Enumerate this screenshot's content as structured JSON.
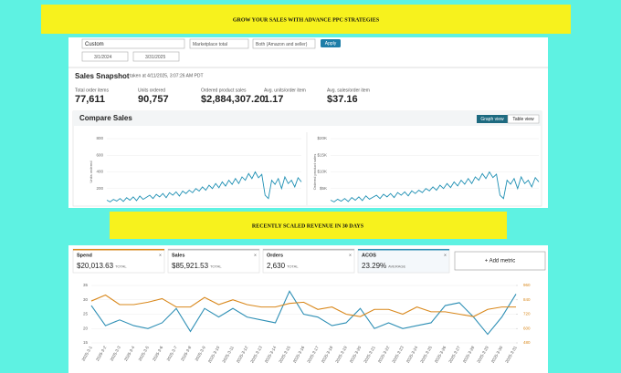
{
  "banner_top": "GROW YOUR SALES WITH ADVANCE PPC STRATEGIES",
  "filters": {
    "range": "Custom",
    "marketplace": "Marketplace total",
    "channel": "Both (Amazon and seller)",
    "apply": "Apply",
    "start_date": "3/1/2024",
    "end_date": "3/31/2025"
  },
  "snapshot": {
    "title": "Sales Snapshot",
    "taken": "taken at 4/11/2025, 3:07:26 AM PDT",
    "metrics": [
      {
        "label": "Total order items",
        "value": "77,611"
      },
      {
        "label": "Units ordered",
        "value": "90,757"
      },
      {
        "label": "Ordered product sales",
        "value": "$2,884,307.20"
      },
      {
        "label": "Avg. units/order item",
        "value": "1.17"
      },
      {
        "label": "Avg. sales/order item",
        "value": "$37.16"
      }
    ]
  },
  "compare": {
    "title": "Compare Sales",
    "graph_view": "Graph view",
    "table_view": "Table view"
  },
  "banner_middle": "RECENTLY SCALED REVENUE IN 30 DAYS",
  "ads_metrics": [
    {
      "label": "Spend",
      "value": "$20,013.63",
      "note": "TOTAL"
    },
    {
      "label": "Sales",
      "value": "$85,921.53",
      "note": "TOTAL"
    },
    {
      "label": "Orders",
      "value": "2,630",
      "note": "TOTAL"
    },
    {
      "label": "ACOS",
      "value": "23.29%",
      "note": "AVERAGE"
    }
  ],
  "add_metric": "+ Add metric",
  "chart_data": [
    {
      "type": "line",
      "y_label": "Units ordered",
      "ylim": [
        0,
        800
      ],
      "yticks": [
        200,
        400,
        600,
        800
      ],
      "series": [
        {
          "color": "#1e8fb3",
          "values": [
            60,
            40,
            70,
            50,
            80,
            45,
            90,
            60,
            100,
            55,
            110,
            70,
            95,
            120,
            80,
            130,
            100,
            140,
            90,
            150,
            120,
            160,
            110,
            170,
            140,
            180,
            150,
            200,
            170,
            220,
            180,
            240,
            200,
            260,
            210,
            280,
            230,
            300,
            250,
            320,
            260,
            340,
            300,
            380,
            320,
            400,
            330,
            370,
            120,
            80,
            300,
            250,
            320,
            200,
            340,
            260,
            300,
            220,
            330,
            280
          ]
        }
      ]
    },
    {
      "type": "line",
      "y_label": "Ordered product sales",
      "ylim": [
        0,
        20000
      ],
      "yticks": [
        {
          "value": 5000,
          "label": "$5K"
        },
        {
          "value": 10000,
          "label": "$10K"
        },
        {
          "value": 15000,
          "label": "$15K"
        },
        {
          "value": 20000,
          "label": "$20K"
        }
      ],
      "series": [
        {
          "color": "#1e8fb3",
          "values": [
            1500,
            1000,
            1800,
            1200,
            2000,
            1100,
            2300,
            1500,
            2500,
            1400,
            2800,
            1800,
            2400,
            3000,
            2000,
            3300,
            2500,
            3500,
            2300,
            3800,
            3000,
            4000,
            2800,
            4300,
            3500,
            4500,
            3800,
            5000,
            4300,
            5500,
            4500,
            6000,
            5000,
            6500,
            5300,
            7000,
            5800,
            7500,
            6300,
            8000,
            6500,
            8500,
            7500,
            9500,
            8000,
            10000,
            8300,
            9300,
            3000,
            2000,
            7500,
            6300,
            8000,
            5000,
            8500,
            6500,
            7500,
            5500,
            8300,
            7000
          ]
        }
      ]
    },
    {
      "type": "line",
      "x": [
        "2025-3-1",
        "2025-3-2",
        "2025-3-3",
        "2025-3-4",
        "2025-3-5",
        "2025-3-6",
        "2025-3-7",
        "2025-3-8",
        "2025-3-9",
        "2025-3-10",
        "2025-3-11",
        "2025-3-12",
        "2025-3-13",
        "2025-3-14",
        "2025-3-15",
        "2025-3-16",
        "2025-3-17",
        "2025-3-18",
        "2025-3-19",
        "2025-3-20",
        "2025-3-21",
        "2025-3-22",
        "2025-3-23",
        "2025-3-24",
        "2025-3-25",
        "2025-3-26",
        "2025-3-27",
        "2025-3-28",
        "2025-3-29",
        "2025-3-30",
        "2025-3-31"
      ],
      "ylim": [
        15,
        35
      ],
      "yticks": [
        15,
        20,
        25,
        30,
        35
      ],
      "y2lim": [
        480,
        960
      ],
      "y2ticks": [
        480,
        600,
        720,
        840,
        960
      ],
      "series": [
        {
          "color": "#2e8fb5",
          "values": [
            28,
            21,
            23,
            21,
            20,
            22,
            27,
            19,
            27,
            24,
            27,
            24,
            23,
            22,
            33,
            25,
            24,
            21,
            22,
            27,
            20,
            22,
            20,
            21,
            22,
            28,
            29,
            24,
            18,
            24,
            32
          ]
        },
        {
          "color": "#d9881c",
          "axis": "y2",
          "values": [
            830,
            880,
            800,
            800,
            820,
            850,
            780,
            780,
            860,
            800,
            840,
            800,
            780,
            780,
            810,
            820,
            760,
            780,
            720,
            700,
            760,
            760,
            720,
            780,
            740,
            740,
            720,
            700,
            760,
            780,
            780
          ]
        }
      ]
    }
  ]
}
